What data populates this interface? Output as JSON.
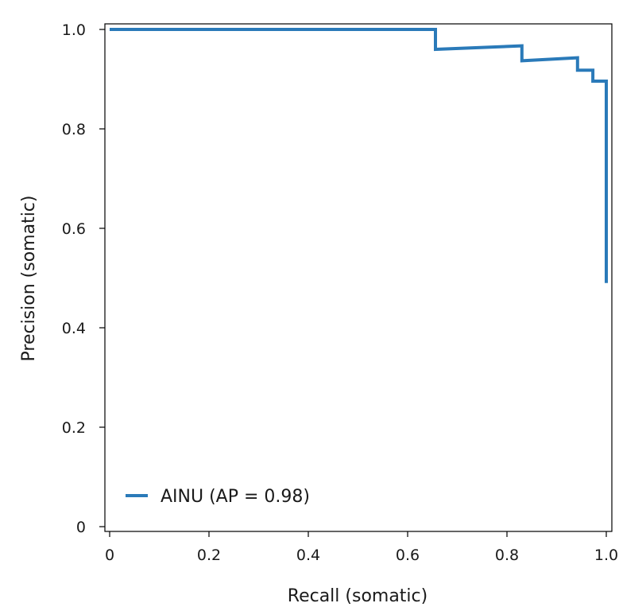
{
  "chart_data": {
    "type": "line",
    "title": "",
    "xlabel": "Recall (somatic)",
    "ylabel": "Precision (somatic)",
    "xlim": [
      0,
      1.0
    ],
    "ylim": [
      0,
      1.0
    ],
    "x_ticks": [
      {
        "value": 0,
        "label": "0"
      },
      {
        "value": 0.2,
        "label": "0.2"
      },
      {
        "value": 0.4,
        "label": "0.4"
      },
      {
        "value": 0.6,
        "label": "0.6"
      },
      {
        "value": 0.8,
        "label": "0.8"
      },
      {
        "value": 1.0,
        "label": "1.0"
      }
    ],
    "y_ticks": [
      {
        "value": 0,
        "label": "0"
      },
      {
        "value": 0.2,
        "label": "0.2"
      },
      {
        "value": 0.4,
        "label": "0.4"
      },
      {
        "value": 0.6,
        "label": "0.6"
      },
      {
        "value": 0.8,
        "label": "0.8"
      },
      {
        "value": 1.0,
        "label": "1.0"
      }
    ],
    "grid": false,
    "legend_position": "bottom-left",
    "series": [
      {
        "name": "AINU (AP = 0.98)",
        "color": "#2a7ab9",
        "x": [
          0,
          0.656,
          0.656,
          0.83,
          0.83,
          0.942,
          0.942,
          0.973,
          0.973,
          1.0,
          1.0
        ],
        "y": [
          1.0,
          1.0,
          0.96,
          0.967,
          0.937,
          0.943,
          0.918,
          0.918,
          0.896,
          0.896,
          0.49
        ]
      }
    ]
  }
}
